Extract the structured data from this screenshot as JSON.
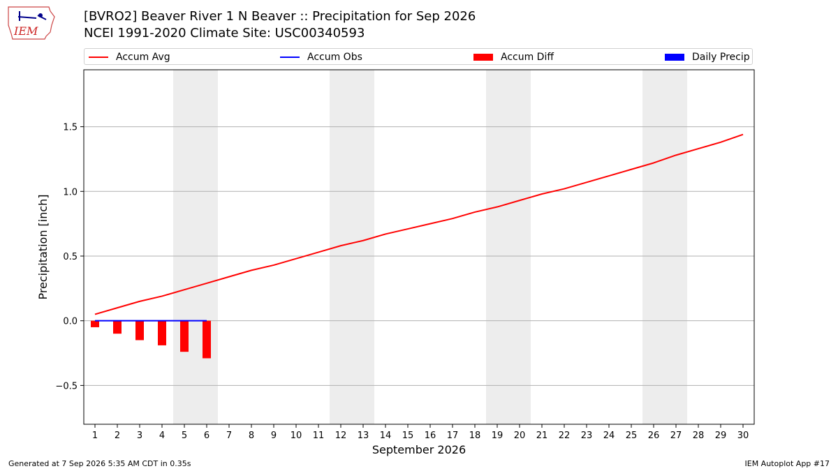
{
  "header": {
    "title_line1": "[BVRO2] Beaver River 1 N Beaver :: Precipitation for Sep 2026",
    "title_line2": "NCEI 1991-2020 Climate Site: USC00340593",
    "logo_text": "IEM"
  },
  "legend": {
    "items": [
      {
        "label": "Accum Avg",
        "kind": "line",
        "color": "#ff0000"
      },
      {
        "label": "Accum Obs",
        "kind": "line",
        "color": "#0000ff"
      },
      {
        "label": "Accum Diff",
        "kind": "box",
        "color": "#ff0000"
      },
      {
        "label": "Daily Precip",
        "kind": "box",
        "color": "#0000ff"
      }
    ]
  },
  "footer": {
    "left": "Generated at 7 Sep 2026 5:35 AM CDT in 0.35s",
    "right": "IEM Autoplot App #17"
  },
  "chart_data": {
    "type": "line",
    "xlabel": "September 2026",
    "ylabel": "Precipitation [inch]",
    "x": [
      1,
      2,
      3,
      4,
      5,
      6,
      7,
      8,
      9,
      10,
      11,
      12,
      13,
      14,
      15,
      16,
      17,
      18,
      19,
      20,
      21,
      22,
      23,
      24,
      25,
      26,
      27,
      28,
      29,
      30
    ],
    "ylim": [
      -0.8,
      1.94
    ],
    "yticks": [
      -0.5,
      0.0,
      0.5,
      1.0,
      1.5
    ],
    "ytick_labels": [
      "−0.5",
      "0.0",
      "0.5",
      "1.0",
      "1.5"
    ],
    "grid": "horizontal",
    "legend_position": "top",
    "weekend_shading": [
      [
        5,
        6
      ],
      [
        12,
        13
      ],
      [
        19,
        20
      ],
      [
        26,
        27
      ]
    ],
    "series": [
      {
        "name": "Accum Avg",
        "kind": "line",
        "color": "#ff0000",
        "x": [
          1,
          2,
          3,
          4,
          5,
          6,
          7,
          8,
          9,
          10,
          11,
          12,
          13,
          14,
          15,
          16,
          17,
          18,
          19,
          20,
          21,
          22,
          23,
          24,
          25,
          26,
          27,
          28,
          29,
          30
        ],
        "values": [
          0.05,
          0.1,
          0.15,
          0.19,
          0.24,
          0.29,
          0.34,
          0.39,
          0.43,
          0.48,
          0.53,
          0.58,
          0.62,
          0.67,
          0.71,
          0.75,
          0.79,
          0.84,
          0.88,
          0.93,
          0.98,
          1.02,
          1.07,
          1.12,
          1.17,
          1.22,
          1.28,
          1.33,
          1.38,
          1.44
        ]
      },
      {
        "name": "Accum Obs",
        "kind": "line",
        "color": "#0000ff",
        "x": [
          1,
          2,
          3,
          4,
          5,
          6
        ],
        "values": [
          0,
          0,
          0,
          0,
          0,
          0
        ]
      },
      {
        "name": "Accum Diff",
        "kind": "bar",
        "color": "#ff0000",
        "x": [
          1,
          2,
          3,
          4,
          5,
          6
        ],
        "values": [
          -0.05,
          -0.1,
          -0.15,
          -0.19,
          -0.24,
          -0.29
        ]
      },
      {
        "name": "Daily Precip",
        "kind": "bar",
        "color": "#0000ff",
        "x": [
          1,
          2,
          3,
          4,
          5,
          6
        ],
        "values": [
          0,
          0,
          0,
          0,
          0,
          0
        ]
      }
    ]
  }
}
